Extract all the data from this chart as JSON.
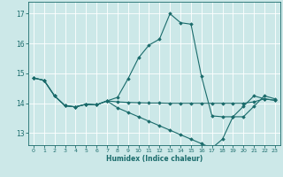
{
  "xlabel": "Humidex (Indice chaleur)",
  "xlim": [
    -0.5,
    23.5
  ],
  "ylim": [
    12.6,
    17.4
  ],
  "yticks": [
    13,
    14,
    15,
    16,
    17
  ],
  "xticks": [
    0,
    1,
    2,
    3,
    4,
    5,
    6,
    7,
    8,
    9,
    10,
    11,
    12,
    13,
    14,
    15,
    16,
    17,
    18,
    19,
    20,
    21,
    22,
    23
  ],
  "background_color": "#cce8e8",
  "grid_color": "#aacccc",
  "line_color": "#1a6b6b",
  "line1_x": [
    0,
    1,
    2,
    3,
    4,
    5,
    6,
    7,
    8,
    9,
    10,
    11,
    12,
    13,
    14,
    15,
    16,
    17,
    18,
    19,
    20,
    21,
    22,
    23
  ],
  "line1_y": [
    14.85,
    14.77,
    14.25,
    13.92,
    13.88,
    13.97,
    13.95,
    14.08,
    14.2,
    14.82,
    15.52,
    15.95,
    16.15,
    17.0,
    16.7,
    16.65,
    14.9,
    13.58,
    13.55,
    13.55,
    13.9,
    14.25,
    14.15,
    14.1
  ],
  "line2_x": [
    0,
    1,
    2,
    3,
    4,
    5,
    6,
    7,
    8,
    9,
    10,
    11,
    12,
    13,
    14,
    15,
    16,
    17,
    18,
    19,
    20,
    21,
    22,
    23
  ],
  "line2_y": [
    14.85,
    14.77,
    14.25,
    13.92,
    13.88,
    13.97,
    13.95,
    14.08,
    14.05,
    14.03,
    14.02,
    14.01,
    14.01,
    14.0,
    14.0,
    14.0,
    14.0,
    14.0,
    14.0,
    14.0,
    14.0,
    14.05,
    14.15,
    14.1
  ],
  "line3_x": [
    0,
    1,
    2,
    3,
    4,
    5,
    6,
    7,
    8,
    9,
    10,
    11,
    12,
    13,
    14,
    15,
    16,
    17,
    18,
    19,
    20,
    21,
    22,
    23
  ],
  "line3_y": [
    14.85,
    14.77,
    14.25,
    13.92,
    13.88,
    13.97,
    13.95,
    14.08,
    13.85,
    13.7,
    13.55,
    13.4,
    13.25,
    13.1,
    12.95,
    12.8,
    12.65,
    12.5,
    12.8,
    13.55,
    13.55,
    13.9,
    14.25,
    14.15
  ]
}
